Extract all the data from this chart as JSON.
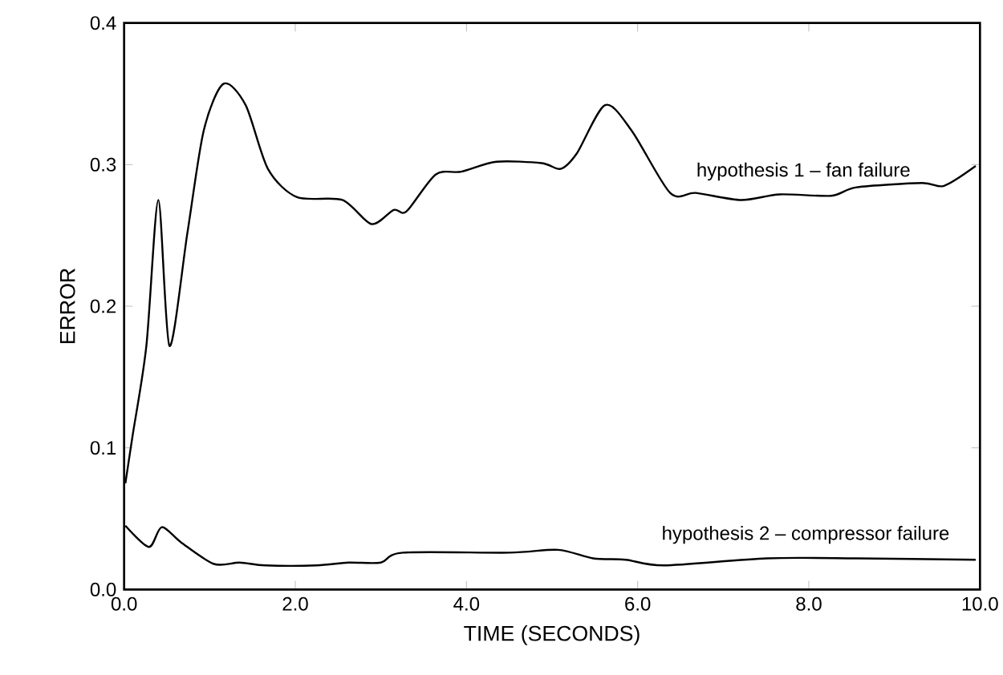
{
  "chart_data": {
    "type": "line",
    "xlabel": "TIME (SECONDS)",
    "ylabel": "ERROR",
    "xlim": [
      0,
      10
    ],
    "ylim": [
      0,
      0.4
    ],
    "xticks": [
      {
        "value": 0,
        "label": "0.0"
      },
      {
        "value": 2,
        "label": "2.0"
      },
      {
        "value": 4,
        "label": "4.0"
      },
      {
        "value": 6,
        "label": "6.0"
      },
      {
        "value": 8,
        "label": "8.0"
      },
      {
        "value": 10,
        "label": "10.0"
      }
    ],
    "yticks": [
      {
        "value": 0,
        "label": "0.0"
      },
      0.1,
      0.2,
      0.3,
      0.4
    ],
    "grid": false,
    "marker": "none",
    "line_style": "solid",
    "series": [
      {
        "name": "hypothesis 1 – fan failure",
        "color": "#000000",
        "x": [
          0.015,
          0.1,
          0.26,
          0.4,
          0.53,
          0.74,
          0.93,
          1.16,
          1.42,
          1.68,
          2.02,
          2.55,
          2.89,
          3.15,
          3.3,
          3.64,
          3.94,
          4.35,
          4.88,
          5.1,
          5.29,
          5.62,
          5.93,
          6.38,
          6.68,
          7.21,
          7.66,
          8.26,
          8.56,
          9.32,
          9.58,
          9.95
        ],
        "values": [
          0.075,
          0.109,
          0.172,
          0.275,
          0.172,
          0.252,
          0.324,
          0.357,
          0.342,
          0.297,
          0.277,
          0.275,
          0.258,
          0.268,
          0.267,
          0.293,
          0.295,
          0.302,
          0.301,
          0.297,
          0.308,
          0.342,
          0.324,
          0.28,
          0.28,
          0.275,
          0.279,
          0.278,
          0.284,
          0.287,
          0.285,
          0.299
        ]
      },
      {
        "name": "hypothesis 2 – compressor failure",
        "color": "#000000",
        "x": [
          0.015,
          0.29,
          0.44,
          0.67,
          1.05,
          1.35,
          1.65,
          2.25,
          2.62,
          3.0,
          3.26,
          4.5,
          5.07,
          5.48,
          5.86,
          6.31,
          7.51,
          8.56,
          9.95
        ],
        "values": [
          0.045,
          0.03,
          0.044,
          0.033,
          0.018,
          0.019,
          0.017,
          0.017,
          0.019,
          0.019,
          0.026,
          0.026,
          0.028,
          0.022,
          0.021,
          0.017,
          0.022,
          0.022,
          0.021
        ]
      }
    ]
  }
}
